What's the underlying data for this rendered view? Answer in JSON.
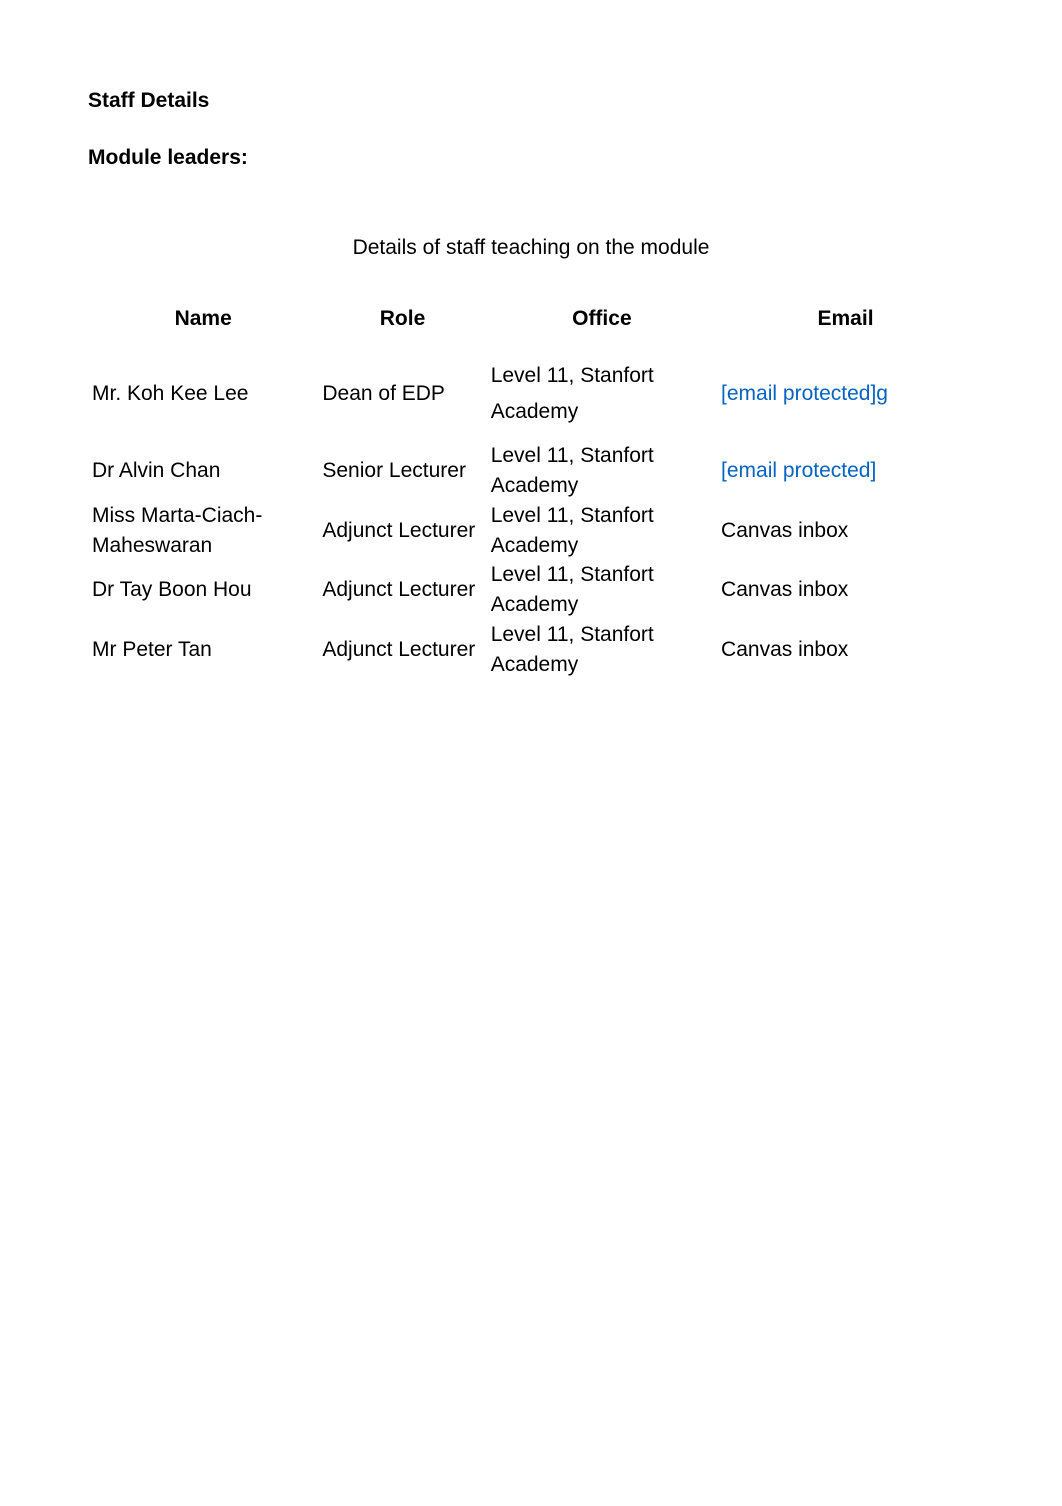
{
  "colors": {
    "text": "#000000",
    "link": "#0563c1",
    "background": "#ffffff"
  },
  "typography": {
    "font_family": "Arial, Helvetica, sans-serif",
    "body_fontsize_pt": 16,
    "heading_weight": "bold"
  },
  "headings": {
    "staff_details": "Staff Details",
    "module_leaders": "Module leaders:"
  },
  "table": {
    "caption": "Details of staff teaching on the module",
    "columns": {
      "name": {
        "label": "Name",
        "width_pct": 26,
        "align": "center"
      },
      "role": {
        "label": "Role",
        "width_pct": 19,
        "align": "center"
      },
      "office": {
        "label": "Office",
        "width_pct": 26,
        "align": "center"
      },
      "email": {
        "label": "Email",
        "width_pct": 29,
        "align": "center"
      }
    },
    "rows": [
      {
        "name": "Mr. Koh Kee Lee",
        "role": "Dean of EDP",
        "office": "Level 11, Stanfort Academy",
        "email_text": "[email protected]g",
        "email_is_link": true
      },
      {
        "name": "Dr Alvin Chan",
        "role": "Senior Lecturer",
        "office": "Level 11, Stanfort Academy",
        "email_text": "[email protected]",
        "email_is_link": true
      },
      {
        "name": "Miss Marta-Ciach-Maheswaran",
        "role": "Adjunct Lecturer",
        "office": "Level 11, Stanfort Academy",
        "email_text": "Canvas inbox",
        "email_is_link": false
      },
      {
        "name": "Dr Tay Boon Hou",
        "role": "Adjunct Lecturer",
        "office": "Level 11, Stanfort Academy",
        "email_text": "Canvas inbox",
        "email_is_link": false
      },
      {
        "name": "Mr Peter Tan",
        "role": "Adjunct Lecturer",
        "office": "Level 11, Stanfort Academy",
        "email_text": "Canvas inbox",
        "email_is_link": false
      }
    ]
  }
}
